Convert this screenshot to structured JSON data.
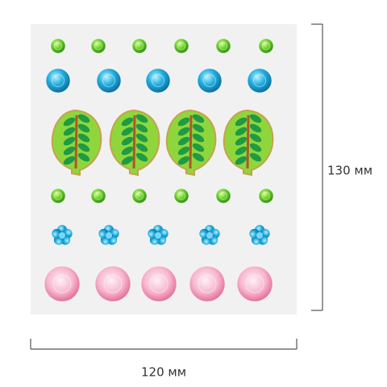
{
  "dimensions": {
    "height": "130 мм",
    "width": "120 мм"
  }
}
